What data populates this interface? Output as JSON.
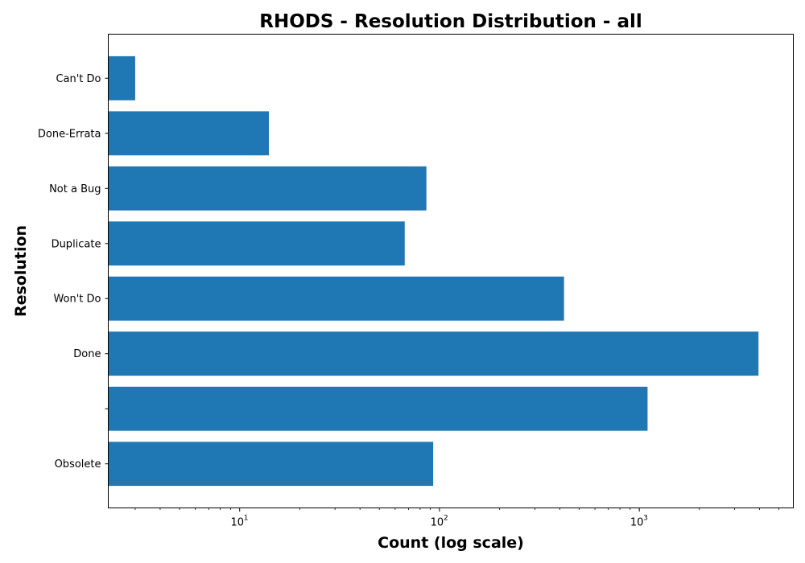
{
  "chart_data": {
    "type": "bar",
    "orientation": "horizontal",
    "title": "RHODS - Resolution Distribution - all",
    "xlabel": "Count (log scale)",
    "ylabel": "Resolution",
    "x_scale": "log",
    "xlim": [
      2.2,
      5900
    ],
    "x_tick_labels": [
      {
        "value": 10,
        "base": "10",
        "exp": "1"
      },
      {
        "value": 100,
        "base": "10",
        "exp": "2"
      },
      {
        "value": 1000,
        "base": "10",
        "exp": "3"
      }
    ],
    "categories": [
      "Can't Do",
      "Done-Errata",
      "Not a Bug",
      "Duplicate",
      "Won't Do",
      "Done",
      "",
      "Obsolete"
    ],
    "values": [
      3,
      14,
      86,
      67,
      420,
      3950,
      1100,
      93
    ],
    "color": "#1f77b4",
    "grid": false,
    "legend": "none"
  }
}
